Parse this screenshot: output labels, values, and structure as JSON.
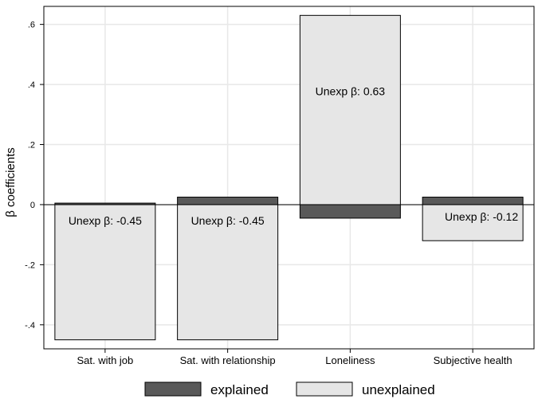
{
  "chart_data": {
    "type": "bar",
    "stacked": true,
    "categories": [
      "Sat. with job",
      "Sat. with relationship",
      "Loneliness",
      "Subjective health"
    ],
    "series": [
      {
        "name": "explained",
        "values": [
          0.005,
          0.025,
          -0.045,
          0.025
        ],
        "color": "#595959"
      },
      {
        "name": "unexplained",
        "values": [
          -0.45,
          -0.45,
          0.63,
          -0.12
        ],
        "color": "#e6e6e6"
      }
    ],
    "bar_labels": [
      "Unexp β: -0.45",
      "Unexp β: -0.45",
      "Unexp β: 0.63",
      "Unexp β: -0.12"
    ],
    "ylabel": "β coefficients",
    "xlabel": "",
    "ylim": [
      -0.48,
      0.66
    ],
    "yticks": [
      -0.4,
      -0.2,
      0,
      0.2,
      0.4,
      0.6
    ],
    "ytick_labels": [
      "-.4",
      "-.2",
      "0",
      ".2",
      ".4",
      ".6"
    ],
    "grid": true,
    "legend_position": "bottom"
  }
}
